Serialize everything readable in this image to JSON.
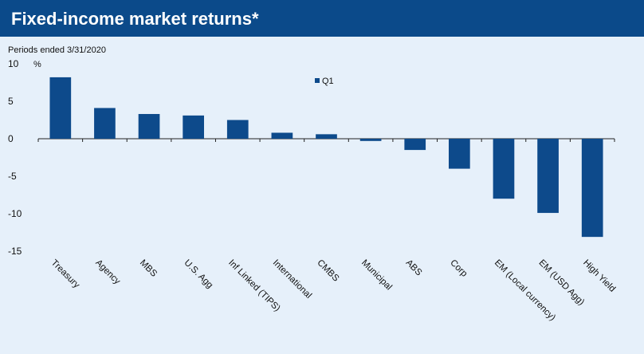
{
  "chart_data": {
    "type": "bar",
    "title": "Fixed-income market returns*",
    "subtitle": "Periods ended 3/31/2020",
    "y_label": "%",
    "categories": [
      "Treasury",
      "Agency",
      "MBS",
      "U.S. Agg",
      "Inf Linked (TIPS)",
      "International",
      "CMBS",
      "Municipal",
      "ABS",
      "Corp",
      "EM (Local currency)",
      "EM (USD Agg)",
      "High Yield"
    ],
    "series": [
      {
        "name": "Q1",
        "color": "#0d4a8b",
        "values": [
          8.2,
          4.1,
          3.3,
          3.1,
          2.5,
          0.8,
          0.6,
          -0.3,
          -1.5,
          -4.0,
          -8.0,
          -9.9,
          -13.1
        ]
      }
    ],
    "ylim": [
      -15,
      10
    ],
    "yticks": [
      10,
      5,
      0,
      -5,
      -10,
      -15
    ],
    "grid": false,
    "legend": "top-center"
  }
}
